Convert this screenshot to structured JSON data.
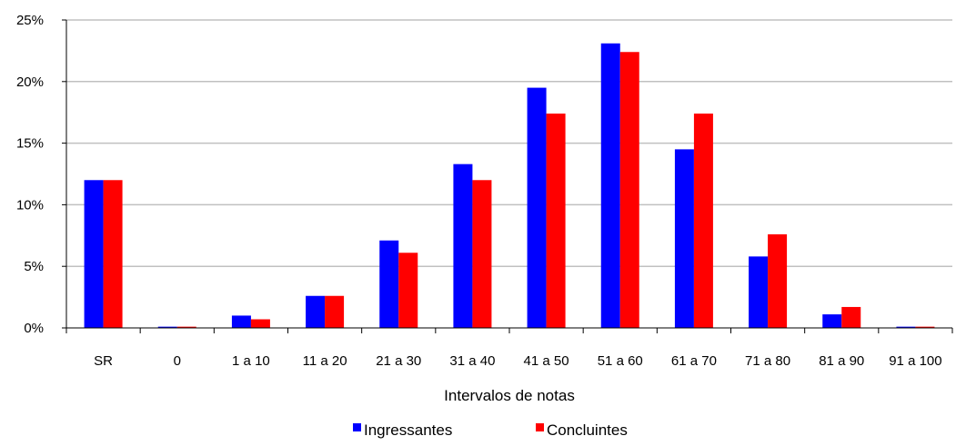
{
  "chart_data": {
    "type": "bar",
    "title": "",
    "xlabel": "Intervalos de notas",
    "ylabel": "",
    "categories": [
      "SR",
      "0",
      "1 a 10",
      "11 a 20",
      "21 a 30",
      "31 a 40",
      "41 a 50",
      "51 a 60",
      "61 a 70",
      "71 a 80",
      "81 a 90",
      "91 a 100"
    ],
    "series": [
      {
        "name": "Ingressantes",
        "color": "#0000FF",
        "values": [
          12.0,
          0.1,
          1.0,
          2.6,
          7.1,
          13.3,
          19.5,
          23.1,
          14.5,
          5.8,
          1.1,
          0.1
        ]
      },
      {
        "name": "Concluintes",
        "color": "#FF0000",
        "values": [
          12.0,
          0.1,
          0.7,
          2.6,
          6.1,
          12.0,
          17.4,
          22.4,
          17.4,
          7.6,
          1.7,
          0.1
        ]
      }
    ],
    "ylim": [
      0,
      25
    ],
    "yticks": [
      0,
      5,
      10,
      15,
      20,
      25
    ],
    "ytick_labels": [
      "0%",
      "5%",
      "10%",
      "15%",
      "20%",
      "25%"
    ],
    "grid": true,
    "gridline_color": "#C0C0C0",
    "legend_position": "bottom"
  }
}
